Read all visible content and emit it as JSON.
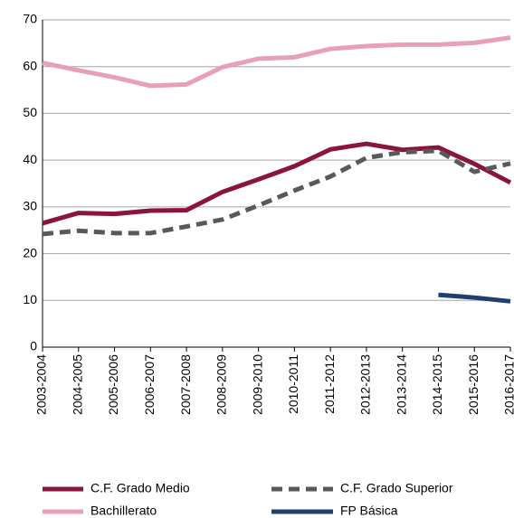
{
  "chart_data": {
    "type": "line",
    "categories": [
      "2003-2004",
      "2004-2005",
      "2005-2006",
      "2006-2007",
      "2007-2008",
      "2008-2009",
      "2009-2010",
      "2010-2011",
      "2011-2012",
      "2012-2013",
      "2013-2014",
      "2014-2015",
      "2015-2016",
      "2016-2017"
    ],
    "series": [
      {
        "name": "C.F. Grado Medio",
        "color": "#8b1538",
        "dash": false,
        "values": [
          26.5,
          28.7,
          28.5,
          29.2,
          29.3,
          33.2,
          35.9,
          38.7,
          42.3,
          43.5,
          42.2,
          42.7,
          39.2,
          35.2
        ]
      },
      {
        "name": "C.F. Grado Superior",
        "color": "#595959",
        "dash": true,
        "values": [
          24.2,
          24.9,
          24.4,
          24.4,
          25.8,
          27.3,
          30.3,
          33.5,
          36.5,
          40.5,
          41.7,
          42.0,
          37.5,
          39.3
        ]
      },
      {
        "name": "Bachillerato",
        "color": "#e8a0b4",
        "dash": false,
        "values": [
          60.8,
          59.2,
          57.7,
          55.9,
          56.2,
          59.9,
          61.7,
          62.0,
          63.8,
          64.4,
          64.7,
          64.7,
          65.1,
          66.2
        ]
      },
      {
        "name": "FP Básica",
        "color": "#1f3f6e",
        "dash": false,
        "values": [
          null,
          null,
          null,
          null,
          null,
          null,
          null,
          null,
          null,
          null,
          null,
          11.2,
          10.6,
          9.8
        ]
      }
    ],
    "ylim": [
      0,
      70
    ],
    "yticks": [
      0,
      10,
      20,
      30,
      40,
      50,
      60,
      70
    ],
    "grid": true
  }
}
